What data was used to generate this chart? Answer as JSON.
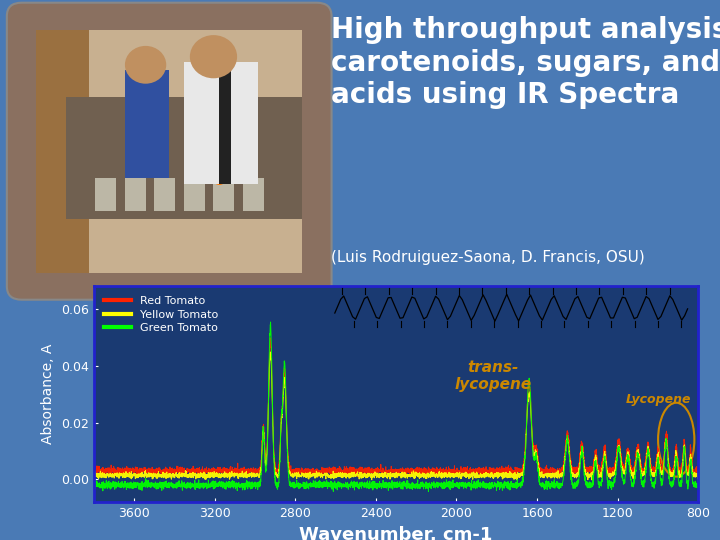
{
  "background_color": "#4a7ab5",
  "title_text": "High throughput analysis of\ncarotenoids, sugars, and\nacids using IR Spectra",
  "subtitle_text": "(Luis Rodruiguez-Saona, D. Francis, OSU)",
  "title_color": "white",
  "subtitle_color": "white",
  "title_fontsize": 20,
  "subtitle_fontsize": 11,
  "plot_bg_color": "#1a3a72",
  "plot_border_color": "#2222cc",
  "xlabel": "Wavenumber, cm-1",
  "ylabel": "Absorbance, A",
  "xlabel_color": "white",
  "ylabel_color": "white",
  "xlabel_fontsize": 13,
  "ylabel_fontsize": 10,
  "tick_color": "white",
  "tick_fontsize": 9,
  "xlim": [
    800,
    3800
  ],
  "ylim": [
    -0.008,
    0.068
  ],
  "yticks": [
    0.0,
    0.02,
    0.04,
    0.06
  ],
  "xticks": [
    800,
    1200,
    1600,
    2000,
    2400,
    2800,
    3200,
    3600
  ],
  "legend_labels": [
    "Red Tomato",
    "Yellow Tomato",
    "Green Tomato"
  ],
  "legend_colors": [
    "#ff2200",
    "#ffff00",
    "#00ff00"
  ],
  "trans_lycopene_text": "trans-\nlycopene",
  "trans_lycopene_color": "#cc8800",
  "lycopene_text": "Lycopene",
  "lycopene_color": "#cc8800",
  "circle_color": "#cc8800",
  "annotation_fontsize": 11,
  "inset_bg": "#c8c8b0"
}
